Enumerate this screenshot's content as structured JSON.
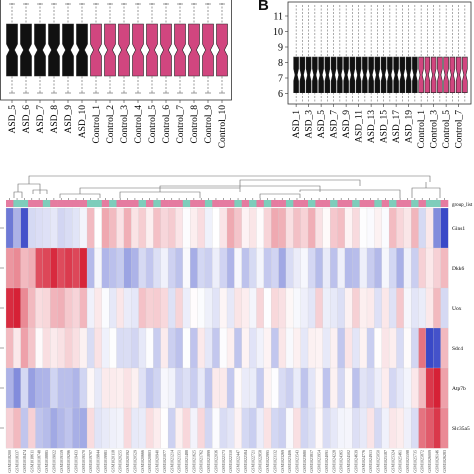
{
  "panel_a": {
    "x_labels": [
      "ASD_5",
      "ASD_6",
      "ASD_7",
      "ASD_8",
      "ASD_9",
      "ASD_10",
      "Control_1",
      "Control_2",
      "Control_3",
      "Control_4",
      "Control_5",
      "Control_6",
      "Control_7",
      "Control_8",
      "Control_9",
      "Control_10"
    ],
    "groups": [
      "asd",
      "asd",
      "asd",
      "asd",
      "asd",
      "asd",
      "ctrl",
      "ctrl",
      "ctrl",
      "ctrl",
      "ctrl",
      "ctrl",
      "ctrl",
      "ctrl",
      "ctrl",
      "ctrl"
    ]
  },
  "panel_b": {
    "letter": "B",
    "y_ticks": [
      "11",
      "10",
      "9",
      "8",
      "7",
      "6"
    ],
    "y_tick_values": [
      11,
      10,
      9,
      8,
      7,
      6
    ],
    "x_labels": [
      "ASD_1",
      "ASD_3",
      "ASD_5",
      "ASD_7",
      "ASD_9",
      "ASD_11",
      "ASD_13",
      "ASD_15",
      "ASD_17",
      "ASD_19",
      "Control_1",
      "Control_3",
      "Control_5",
      "Control_7"
    ],
    "n_asd": 20,
    "n_ctrl": 8
  },
  "heatmap": {
    "annotation_label": "group_list",
    "genes": [
      "Gins1",
      "Dkk6",
      "Uox",
      "Sdc4",
      "Atp7b",
      "Slc35a5"
    ],
    "n_columns": 60,
    "colors": {
      "asd": "#e57ba0",
      "ctrl": "#7ecdbb",
      "low": "#2f3fc4",
      "mid": "#ffffff",
      "high": "#d4152b"
    }
  },
  "colors": {
    "asd_box": "#111111",
    "ctrl_box": "#d1467f"
  }
}
